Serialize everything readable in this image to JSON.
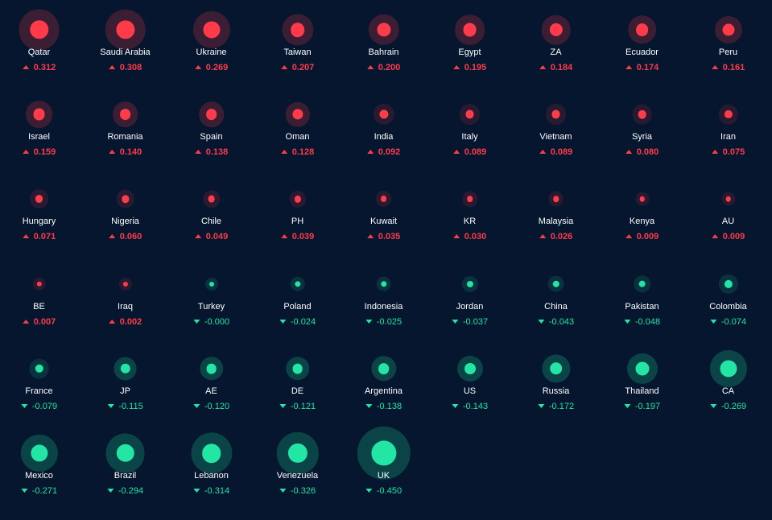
{
  "colors": {
    "background": "#05162e",
    "positive": "#ff3b4a",
    "negative": "#23e6a5",
    "label": "#ffffff"
  },
  "tiles": [
    {
      "name": "Qatar",
      "value": "0.312",
      "v": 0.312
    },
    {
      "name": "Saudi Arabia",
      "value": "0.308",
      "v": 0.308
    },
    {
      "name": "Ukraine",
      "value": "0.269",
      "v": 0.269
    },
    {
      "name": "Taiwan",
      "value": "0.207",
      "v": 0.207
    },
    {
      "name": "Bahrain",
      "value": "0.200",
      "v": 0.2
    },
    {
      "name": "Egypt",
      "value": "0.195",
      "v": 0.195
    },
    {
      "name": "ZA",
      "value": "0.184",
      "v": 0.184
    },
    {
      "name": "Ecuador",
      "value": "0.174",
      "v": 0.174
    },
    {
      "name": "Peru",
      "value": "0.161",
      "v": 0.161
    },
    {
      "name": "Israel",
      "value": "0.159",
      "v": 0.159
    },
    {
      "name": "Romania",
      "value": "0.140",
      "v": 0.14
    },
    {
      "name": "Spain",
      "value": "0.138",
      "v": 0.138
    },
    {
      "name": "Oman",
      "value": "0.128",
      "v": 0.128
    },
    {
      "name": "India",
      "value": "0.092",
      "v": 0.092
    },
    {
      "name": "Italy",
      "value": "0.089",
      "v": 0.089
    },
    {
      "name": "Vietnam",
      "value": "0.089",
      "v": 0.089
    },
    {
      "name": "Syria",
      "value": "0.080",
      "v": 0.08
    },
    {
      "name": "Iran",
      "value": "0.075",
      "v": 0.075
    },
    {
      "name": "Hungary",
      "value": "0.071",
      "v": 0.071
    },
    {
      "name": "Nigeria",
      "value": "0.060",
      "v": 0.06
    },
    {
      "name": "Chile",
      "value": "0.049",
      "v": 0.049
    },
    {
      "name": "PH",
      "value": "0.039",
      "v": 0.039
    },
    {
      "name": "Kuwait",
      "value": "0.035",
      "v": 0.035
    },
    {
      "name": "KR",
      "value": "0.030",
      "v": 0.03
    },
    {
      "name": "Malaysia",
      "value": "0.026",
      "v": 0.026
    },
    {
      "name": "Kenya",
      "value": "0.009",
      "v": 0.009
    },
    {
      "name": "AU",
      "value": "0.009",
      "v": 0.009
    },
    {
      "name": "BE",
      "value": "0.007",
      "v": 0.007
    },
    {
      "name": "Iraq",
      "value": "0.002",
      "v": 0.002
    },
    {
      "name": "Turkey",
      "value": "-0.000",
      "v": -1e-06
    },
    {
      "name": "Poland",
      "value": "-0.024",
      "v": -0.024
    },
    {
      "name": "Indonesia",
      "value": "-0.025",
      "v": -0.025
    },
    {
      "name": "Jordan",
      "value": "-0.037",
      "v": -0.037
    },
    {
      "name": "China",
      "value": "-0.043",
      "v": -0.043
    },
    {
      "name": "Pakistan",
      "value": "-0.048",
      "v": -0.048
    },
    {
      "name": "Colombia",
      "value": "-0.074",
      "v": -0.074
    },
    {
      "name": "France",
      "value": "-0.079",
      "v": -0.079
    },
    {
      "name": "JP",
      "value": "-0.115",
      "v": -0.115
    },
    {
      "name": "AE",
      "value": "-0.120",
      "v": -0.12
    },
    {
      "name": "DE",
      "value": "-0.121",
      "v": -0.121
    },
    {
      "name": "Argentina",
      "value": "-0.138",
      "v": -0.138
    },
    {
      "name": "US",
      "value": "-0.143",
      "v": -0.143
    },
    {
      "name": "Russia",
      "value": "-0.172",
      "v": -0.172
    },
    {
      "name": "Thailand",
      "value": "-0.197",
      "v": -0.197
    },
    {
      "name": "CA",
      "value": "-0.269",
      "v": -0.269
    },
    {
      "name": "Mexico",
      "value": "-0.271",
      "v": -0.271
    },
    {
      "name": "Brazil",
      "value": "-0.294",
      "v": -0.294
    },
    {
      "name": "Lebanon",
      "value": "-0.314",
      "v": -0.314
    },
    {
      "name": "Venezuela",
      "value": "-0.326",
      "v": -0.326
    },
    {
      "name": "UK",
      "value": "-0.450",
      "v": -0.45
    }
  ]
}
